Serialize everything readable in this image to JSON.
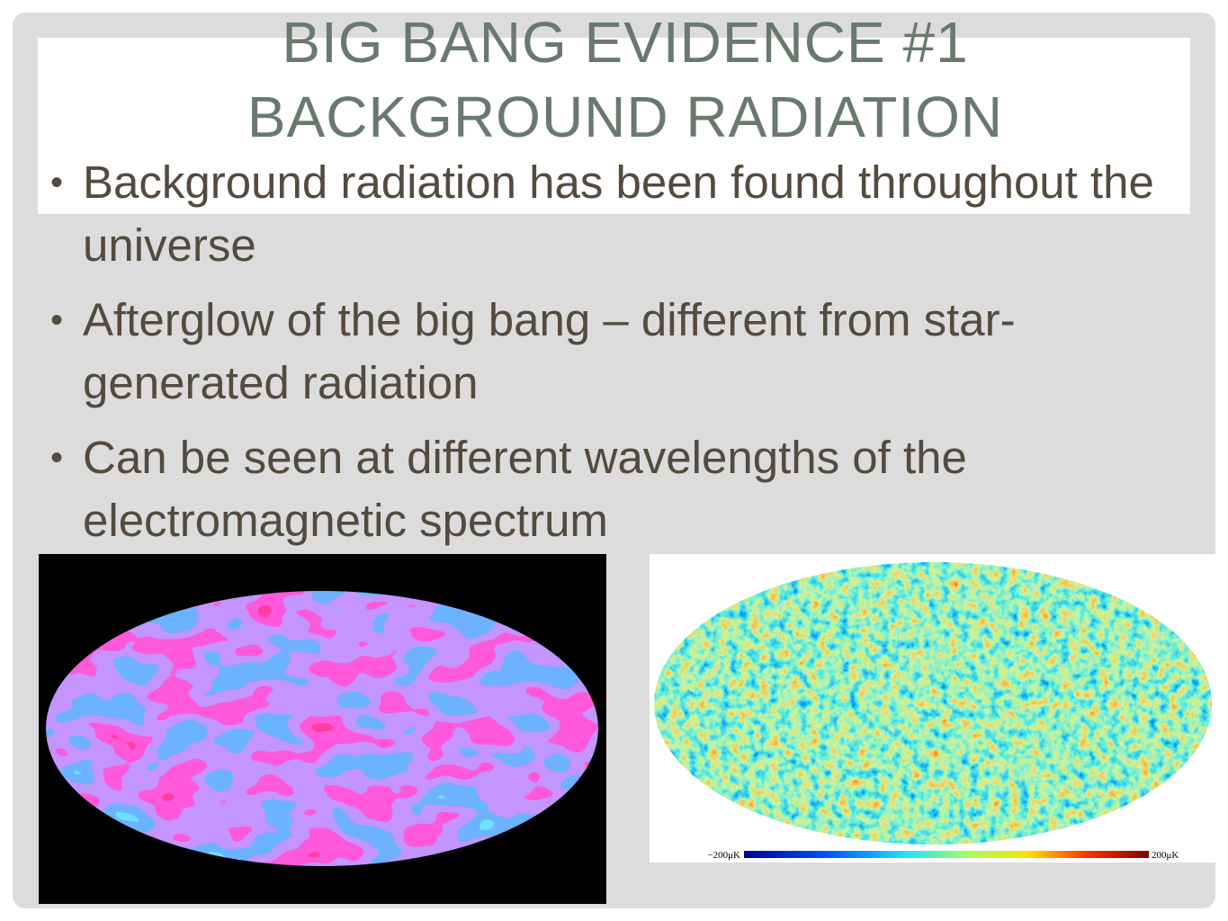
{
  "title": {
    "lines": [
      "BIG BANG EVIDENCE #1",
      "BACKGROUND RADIATION"
    ]
  },
  "bullets": [
    "Background radiation has been found throughout the universe",
    "Afterglow of the big bang – different from star-generated radiation",
    "Can be seen at different wavelengths of the electromagnetic spectrum"
  ],
  "images": {
    "right": {
      "scale_labels": [
        "−200μK",
        "200μK"
      ]
    }
  }
}
